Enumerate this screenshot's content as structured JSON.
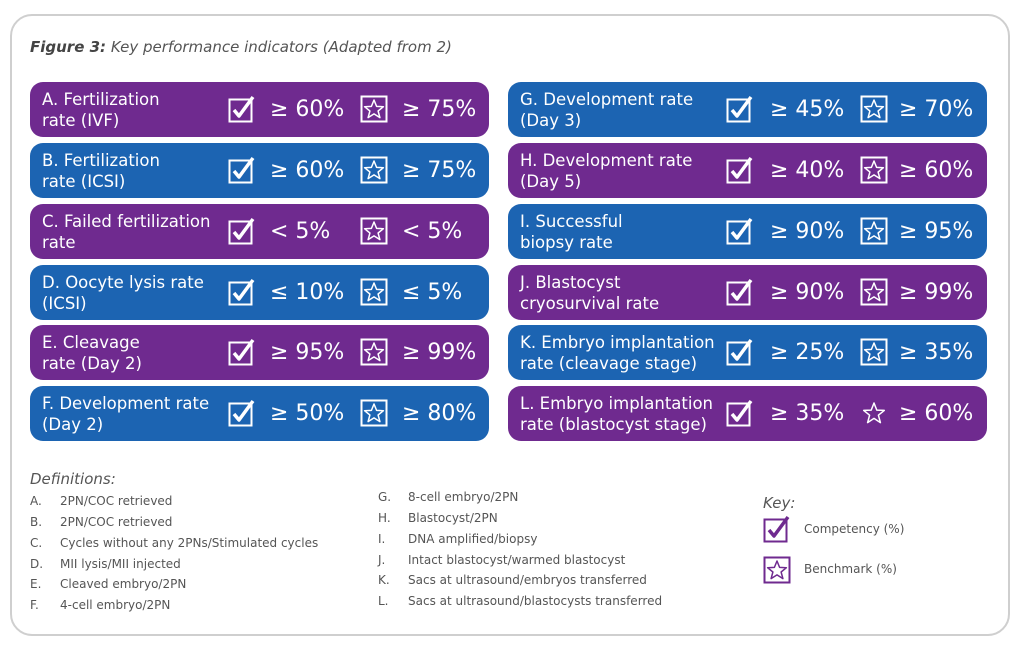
{
  "figure": {
    "label": "Figure 3:",
    "caption": "Key performance indicators (Adapted from 2)"
  },
  "colors": {
    "purple": "#6f2a8f",
    "blue": "#1c64b2"
  },
  "icons": {
    "competency": "check-box-icon",
    "benchmark": "star-box-icon"
  },
  "kpis": [
    {
      "label": "A. Fertilization\nrate (IVF)",
      "competency": "≥ 60%",
      "benchmark": "≥ 75%",
      "color": "purple"
    },
    {
      "label": "B. Fertilization\nrate (ICSI)",
      "competency": "≥ 60%",
      "benchmark": "≥ 75%",
      "color": "blue"
    },
    {
      "label": "C. Failed fertilization\nrate",
      "competency": "< 5%",
      "benchmark": "< 5%",
      "color": "purple"
    },
    {
      "label": "D. Oocyte lysis rate\n(ICSI)",
      "competency": "≤ 10%",
      "benchmark": "≤ 5%",
      "color": "blue"
    },
    {
      "label": "E. Cleavage\nrate (Day 2)",
      "competency": "≥ 95%",
      "benchmark": "≥ 99%",
      "color": "purple"
    },
    {
      "label": "F. Development rate\n(Day 2)",
      "competency": "≥ 50%",
      "benchmark": "≥ 80%",
      "color": "blue"
    },
    {
      "label": "G. Development rate\n(Day 3)",
      "competency": "≥ 45%",
      "benchmark": "≥ 70%",
      "color": "blue"
    },
    {
      "label": "H. Development rate\n(Day 5)",
      "competency": "≥ 40%",
      "benchmark": "≥ 60%",
      "color": "purple"
    },
    {
      "label": "I. Successful\nbiopsy rate",
      "competency": "≥ 90%",
      "benchmark": "≥ 95%",
      "color": "blue"
    },
    {
      "label": "J. Blastocyst\ncryosurvival rate",
      "competency": "≥ 90%",
      "benchmark": "≥ 99%",
      "color": "purple"
    },
    {
      "label": "K. Embryo implantation\nrate (cleavage stage)",
      "competency": "≥ 25%",
      "benchmark": "≥ 35%",
      "color": "blue"
    },
    {
      "label": "L. Embryo implantation\nrate (blastocyst stage)",
      "competency": "≥ 35%",
      "benchmark": "≥ 60%",
      "color": "purple"
    }
  ],
  "definitions": {
    "title": "Definitions:",
    "items": [
      {
        "letter": "A.",
        "text": "2PN/COC retrieved"
      },
      {
        "letter": "B.",
        "text": "2PN/COC retrieved"
      },
      {
        "letter": "C.",
        "text": "Cycles without any 2PNs/Stimulated cycles"
      },
      {
        "letter": "D.",
        "text": "MII lysis/MII injected"
      },
      {
        "letter": "E.",
        "text": "Cleaved embryo/2PN"
      },
      {
        "letter": "F.",
        "text": "4-cell embryo/2PN"
      },
      {
        "letter": "G.",
        "text": "8-cell embryo/2PN"
      },
      {
        "letter": "H.",
        "text": "Blastocyst/2PN"
      },
      {
        "letter": "I.",
        "text": "DNA amplified/biopsy"
      },
      {
        "letter": "J.",
        "text": "Intact blastocyst/warmed blastocyst"
      },
      {
        "letter": "K.",
        "text": "Sacs at ultrasound/embryos transferred"
      },
      {
        "letter": "L.",
        "text": "Sacs at ultrasound/blastocysts transferred"
      }
    ]
  },
  "key": {
    "title": "Key:",
    "competency": "Competency (%)",
    "benchmark": "Benchmark (%)"
  }
}
